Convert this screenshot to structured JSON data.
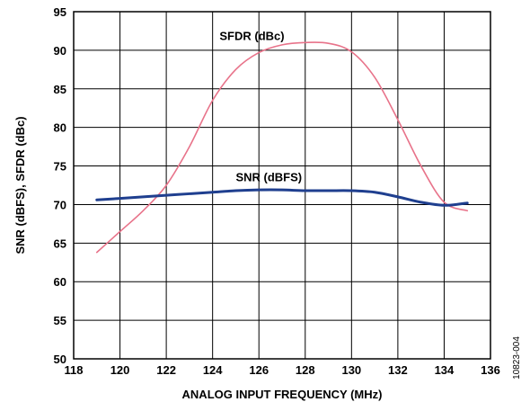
{
  "figure_id": "10823-004",
  "chart_data": {
    "type": "line",
    "title": "",
    "xlabel": "ANALOG INPUT FREQUENCY (MHz)",
    "ylabel": "SNR (dBFS), SFDR (dBc)",
    "xlim": [
      118,
      136
    ],
    "ylim": [
      50,
      95
    ],
    "xticks": [
      118,
      120,
      122,
      124,
      126,
      128,
      130,
      132,
      134,
      136
    ],
    "yticks": [
      50,
      55,
      60,
      65,
      70,
      75,
      80,
      85,
      90,
      95
    ],
    "grid": true,
    "legend": "inline labels",
    "series": [
      {
        "name": "SFDR (dBc)",
        "color": "#e8738a",
        "x": [
          119,
          120,
          121,
          122,
          123,
          124,
          125,
          126,
          127,
          128,
          129,
          130,
          131,
          132,
          133,
          134,
          135
        ],
        "y": [
          63.8,
          66.5,
          69.2,
          72.5,
          77.5,
          83.5,
          87.5,
          89.7,
          90.7,
          91.0,
          90.9,
          89.8,
          86.5,
          81.0,
          75.0,
          70.3,
          69.2
        ]
      },
      {
        "name": "SNR (dBFS)",
        "color": "#1f3f8f",
        "x": [
          119,
          120,
          121,
          122,
          123,
          124,
          125,
          126,
          127,
          128,
          129,
          130,
          131,
          132,
          133,
          134,
          135
        ],
        "y": [
          70.6,
          70.8,
          71.0,
          71.2,
          71.4,
          71.6,
          71.8,
          71.9,
          71.9,
          71.8,
          71.8,
          71.8,
          71.6,
          71.0,
          70.3,
          69.9,
          70.2
        ]
      }
    ]
  }
}
